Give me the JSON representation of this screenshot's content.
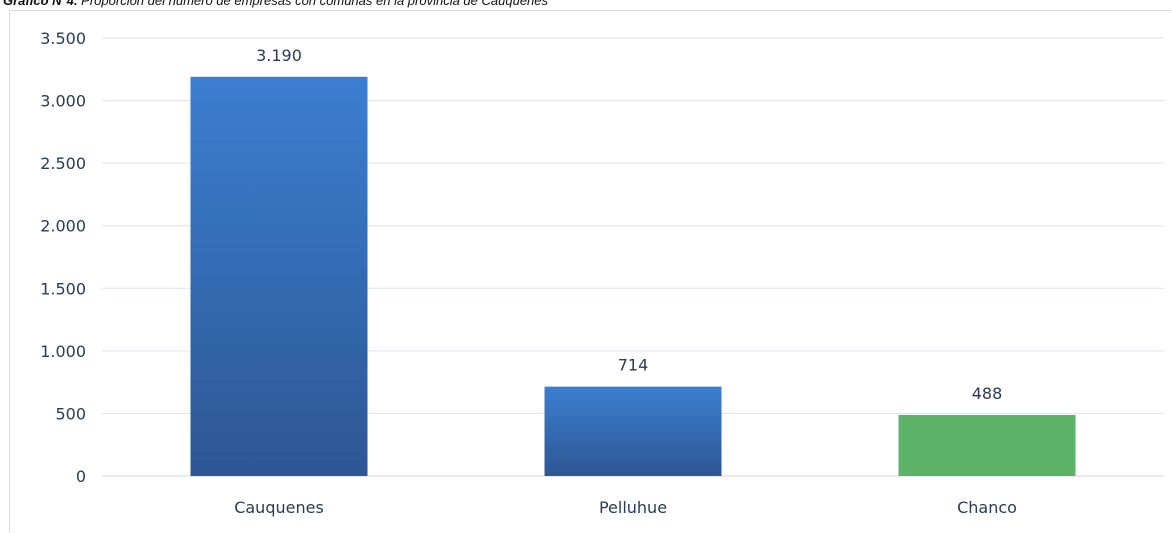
{
  "caption": {
    "lead": "Gráfico N°4.",
    "text": " Proporción del número de empresas con comunas en la provincia de Cauquenes"
  },
  "colors": {
    "blue_top": "#3b7fd0",
    "blue_bottom": "#2e5694",
    "green": "#5cb368",
    "grid": "#dde3ee",
    "axis": "#d0d4da",
    "text": "#2b3a55"
  },
  "chart_data": {
    "type": "bar",
    "categories": [
      "Cauquenes",
      "Pelluhue",
      "Chanco"
    ],
    "values": [
      3190,
      714,
      488
    ],
    "data_labels": [
      "3.190",
      "714",
      "488"
    ],
    "bar_colors": [
      "blue",
      "blue",
      "green"
    ],
    "ylim": [
      0,
      3500
    ],
    "yticks": [
      0,
      500,
      1000,
      1500,
      2000,
      2500,
      3000,
      3500
    ],
    "ytick_labels": [
      "0",
      "500",
      "1.000",
      "1.500",
      "2.000",
      "2.500",
      "3.000",
      "3.500"
    ],
    "grid": true,
    "legend": "none",
    "xlabel": "",
    "ylabel": ""
  }
}
